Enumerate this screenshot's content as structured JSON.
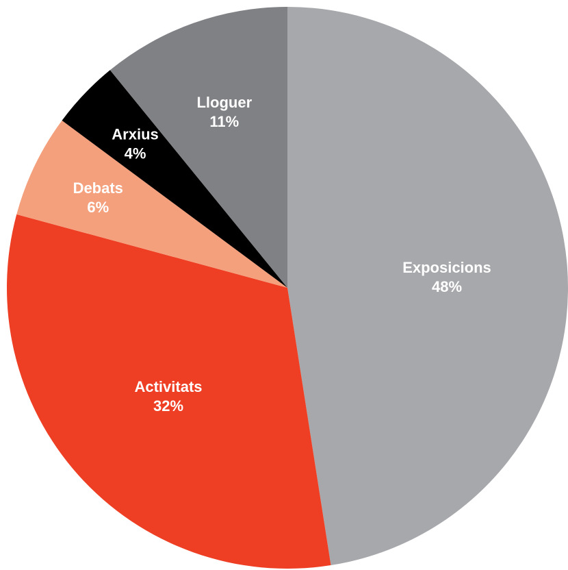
{
  "chart_data": {
    "type": "pie",
    "slices": [
      {
        "label": "Exposicions",
        "value": 48,
        "value_label": "48%",
        "color": "#a7a8ab",
        "text_color": "#ffffff"
      },
      {
        "label": "Activitats",
        "value": 32,
        "value_label": "32%",
        "color": "#ee3e23",
        "text_color": "#ffffff"
      },
      {
        "label": "Debats",
        "value": 6,
        "value_label": "6%",
        "color": "#f5a07c",
        "text_color": "#ffffff"
      },
      {
        "label": "Arxius",
        "value": 4,
        "value_label": "4%",
        "color": "#000000",
        "text_color": "#ffffff"
      },
      {
        "label": "Lloguer",
        "value": 11,
        "value_label": "11%",
        "color": "#808185",
        "text_color": "#ffffff"
      }
    ],
    "start": "12 o'clock",
    "direction": "clockwise",
    "legend": "none"
  }
}
